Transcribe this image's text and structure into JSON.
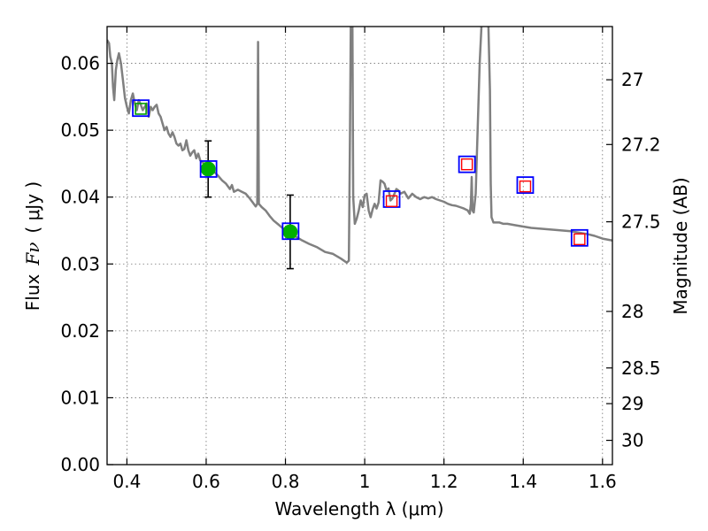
{
  "chart_data": {
    "type": "scatter",
    "xlabel": "Wavelength  λ (μm)",
    "ylabel_text": "Flux",
    "ylabel_symbol": "Fν",
    "ylabel_unit": "( μJy )",
    "y2label": "Magnitude (AB)",
    "xlim": [
      0.35,
      1.625
    ],
    "ylim": [
      0.0,
      0.0655
    ],
    "x_ticks": [
      {
        "value": 0.4,
        "label": "0.4"
      },
      {
        "value": 0.6,
        "label": "0.6"
      },
      {
        "value": 0.8,
        "label": "0.8"
      },
      {
        "value": 1.0,
        "label": "1"
      },
      {
        "value": 1.2,
        "label": "1.2"
      },
      {
        "value": 1.4,
        "label": "1.4"
      },
      {
        "value": 1.6,
        "label": "1.6"
      }
    ],
    "y_ticks": [
      {
        "value": 0.0,
        "label": "0.00"
      },
      {
        "value": 0.01,
        "label": "0.01"
      },
      {
        "value": 0.02,
        "label": "0.02"
      },
      {
        "value": 0.03,
        "label": "0.03"
      },
      {
        "value": 0.04,
        "label": "0.04"
      },
      {
        "value": 0.05,
        "label": "0.05"
      },
      {
        "value": 0.06,
        "label": "0.06"
      }
    ],
    "y2_ticks": [
      {
        "magnitude": 27.0,
        "label": "27"
      },
      {
        "magnitude": 27.2,
        "label": "27.2"
      },
      {
        "magnitude": 27.5,
        "label": "27.5"
      },
      {
        "magnitude": 28.0,
        "label": "28"
      },
      {
        "magnitude": 28.5,
        "label": "28.5"
      },
      {
        "magnitude": 29.0,
        "label": "29"
      },
      {
        "magnitude": 30.0,
        "label": "30"
      }
    ],
    "grid": true,
    "series": [
      {
        "kind": "model-sed-line",
        "color": "#808080",
        "points": [
          [
            0.35,
            0.0635
          ],
          [
            0.355,
            0.063
          ],
          [
            0.358,
            0.061
          ],
          [
            0.362,
            0.06
          ],
          [
            0.365,
            0.0565
          ],
          [
            0.368,
            0.0545
          ],
          [
            0.372,
            0.059
          ],
          [
            0.376,
            0.0605
          ],
          [
            0.38,
            0.0615
          ],
          [
            0.385,
            0.06
          ],
          [
            0.39,
            0.0575
          ],
          [
            0.395,
            0.0548
          ],
          [
            0.4,
            0.0535
          ],
          [
            0.405,
            0.0525
          ],
          [
            0.41,
            0.0545
          ],
          [
            0.415,
            0.0555
          ],
          [
            0.42,
            0.054
          ],
          [
            0.425,
            0.053
          ],
          [
            0.43,
            0.0545
          ],
          [
            0.435,
            0.0538
          ],
          [
            0.44,
            0.053
          ],
          [
            0.445,
            0.0535
          ],
          [
            0.45,
            0.054
          ],
          [
            0.455,
            0.052
          ],
          [
            0.46,
            0.0535
          ],
          [
            0.465,
            0.053
          ],
          [
            0.47,
            0.0535
          ],
          [
            0.475,
            0.0538
          ],
          [
            0.48,
            0.0525
          ],
          [
            0.485,
            0.052
          ],
          [
            0.49,
            0.051
          ],
          [
            0.495,
            0.05
          ],
          [
            0.5,
            0.0505
          ],
          [
            0.505,
            0.0495
          ],
          [
            0.51,
            0.049
          ],
          [
            0.515,
            0.0497
          ],
          [
            0.52,
            0.049
          ],
          [
            0.525,
            0.048
          ],
          [
            0.53,
            0.0477
          ],
          [
            0.535,
            0.048
          ],
          [
            0.54,
            0.047
          ],
          [
            0.545,
            0.0472
          ],
          [
            0.55,
            0.0485
          ],
          [
            0.555,
            0.047
          ],
          [
            0.56,
            0.0462
          ],
          [
            0.565,
            0.0467
          ],
          [
            0.57,
            0.047
          ],
          [
            0.575,
            0.0458
          ],
          [
            0.58,
            0.0465
          ],
          [
            0.585,
            0.0455
          ],
          [
            0.59,
            0.0452
          ],
          [
            0.595,
            0.045
          ],
          [
            0.6,
            0.0448
          ],
          [
            0.61,
            0.0443
          ],
          [
            0.62,
            0.0438
          ],
          [
            0.63,
            0.0432
          ],
          [
            0.64,
            0.0425
          ],
          [
            0.65,
            0.042
          ],
          [
            0.66,
            0.0412
          ],
          [
            0.665,
            0.0418
          ],
          [
            0.67,
            0.0408
          ],
          [
            0.68,
            0.0411
          ],
          [
            0.69,
            0.0408
          ],
          [
            0.7,
            0.0405
          ],
          [
            0.71,
            0.0398
          ],
          [
            0.72,
            0.039
          ],
          [
            0.725,
            0.0386
          ],
          [
            0.729,
            0.039
          ],
          [
            0.731,
            0.0632
          ],
          [
            0.733,
            0.039
          ],
          [
            0.74,
            0.0385
          ],
          [
            0.75,
            0.038
          ],
          [
            0.76,
            0.0372
          ],
          [
            0.77,
            0.0365
          ],
          [
            0.78,
            0.036
          ],
          [
            0.79,
            0.0355
          ],
          [
            0.8,
            0.035
          ],
          [
            0.81,
            0.0347
          ],
          [
            0.82,
            0.0343
          ],
          [
            0.84,
            0.0336
          ],
          [
            0.86,
            0.033
          ],
          [
            0.88,
            0.0325
          ],
          [
            0.9,
            0.0318
          ],
          [
            0.92,
            0.0315
          ],
          [
            0.94,
            0.0308
          ],
          [
            0.955,
            0.0302
          ],
          [
            0.96,
            0.0305
          ],
          [
            0.963,
            0.05
          ],
          [
            0.965,
            0.066
          ],
          [
            0.969,
            0.066
          ],
          [
            0.971,
            0.04
          ],
          [
            0.975,
            0.036
          ],
          [
            0.98,
            0.0368
          ],
          [
            0.985,
            0.038
          ],
          [
            0.99,
            0.0395
          ],
          [
            0.995,
            0.0385
          ],
          [
            1.0,
            0.0403
          ],
          [
            1.005,
            0.0405
          ],
          [
            1.01,
            0.038
          ],
          [
            1.015,
            0.037
          ],
          [
            1.02,
            0.0382
          ],
          [
            1.025,
            0.039
          ],
          [
            1.03,
            0.0383
          ],
          [
            1.035,
            0.0392
          ],
          [
            1.04,
            0.0425
          ],
          [
            1.045,
            0.0423
          ],
          [
            1.05,
            0.042
          ],
          [
            1.055,
            0.041
          ],
          [
            1.06,
            0.0413
          ],
          [
            1.065,
            0.0395
          ],
          [
            1.07,
            0.0398
          ],
          [
            1.075,
            0.0405
          ],
          [
            1.08,
            0.0412
          ],
          [
            1.085,
            0.041
          ],
          [
            1.09,
            0.0405
          ],
          [
            1.1,
            0.0408
          ],
          [
            1.11,
            0.0398
          ],
          [
            1.12,
            0.0405
          ],
          [
            1.13,
            0.04
          ],
          [
            1.14,
            0.0397
          ],
          [
            1.15,
            0.04
          ],
          [
            1.16,
            0.0398
          ],
          [
            1.17,
            0.04
          ],
          [
            1.18,
            0.0397
          ],
          [
            1.19,
            0.0395
          ],
          [
            1.2,
            0.0393
          ],
          [
            1.21,
            0.039
          ],
          [
            1.22,
            0.0388
          ],
          [
            1.23,
            0.0387
          ],
          [
            1.24,
            0.0385
          ],
          [
            1.25,
            0.0383
          ],
          [
            1.26,
            0.038
          ],
          [
            1.265,
            0.0375
          ],
          [
            1.268,
            0.039
          ],
          [
            1.27,
            0.043
          ],
          [
            1.272,
            0.038
          ],
          [
            1.275,
            0.0377
          ],
          [
            1.28,
            0.0405
          ],
          [
            1.285,
            0.05
          ],
          [
            1.29,
            0.06
          ],
          [
            1.295,
            0.066
          ],
          [
            1.312,
            0.066
          ],
          [
            1.316,
            0.056
          ],
          [
            1.318,
            0.042
          ],
          [
            1.32,
            0.037
          ],
          [
            1.325,
            0.0362
          ],
          [
            1.33,
            0.0362
          ],
          [
            1.34,
            0.0362
          ],
          [
            1.35,
            0.036
          ],
          [
            1.36,
            0.036
          ],
          [
            1.38,
            0.0358
          ],
          [
            1.4,
            0.0356
          ],
          [
            1.42,
            0.0354
          ],
          [
            1.44,
            0.0353
          ],
          [
            1.46,
            0.0352
          ],
          [
            1.48,
            0.0351
          ],
          [
            1.5,
            0.035
          ],
          [
            1.52,
            0.0349
          ],
          [
            1.54,
            0.0347
          ],
          [
            1.56,
            0.0345
          ],
          [
            1.58,
            0.0342
          ],
          [
            1.6,
            0.0338
          ],
          [
            1.625,
            0.0335
          ]
        ]
      },
      {
        "kind": "observed-points-with-errors",
        "color": "#00b000",
        "points": [
          {
            "x": 0.605,
            "y": 0.0442,
            "yerr": 0.0042
          },
          {
            "x": 0.812,
            "y": 0.0348,
            "yerr": 0.0055
          }
        ]
      },
      {
        "kind": "observed-square",
        "color": "#00a000",
        "points": [
          {
            "x": 0.435,
            "y": 0.0532
          }
        ]
      },
      {
        "kind": "model-squares",
        "color": "#0000ff",
        "points": [
          {
            "x": 0.435,
            "y": 0.0533
          },
          {
            "x": 0.606,
            "y": 0.0442
          },
          {
            "x": 0.813,
            "y": 0.0349
          },
          {
            "x": 1.068,
            "y": 0.0397
          },
          {
            "x": 1.258,
            "y": 0.0449
          },
          {
            "x": 1.405,
            "y": 0.0418
          },
          {
            "x": 1.542,
            "y": 0.0339
          }
        ]
      },
      {
        "kind": "upper-limit-squares",
        "color": "#ff0000",
        "points": [
          {
            "x": 1.068,
            "y": 0.0394
          },
          {
            "x": 1.258,
            "y": 0.0449
          },
          {
            "x": 1.405,
            "y": 0.0416
          },
          {
            "x": 1.542,
            "y": 0.0337
          }
        ]
      }
    ]
  }
}
